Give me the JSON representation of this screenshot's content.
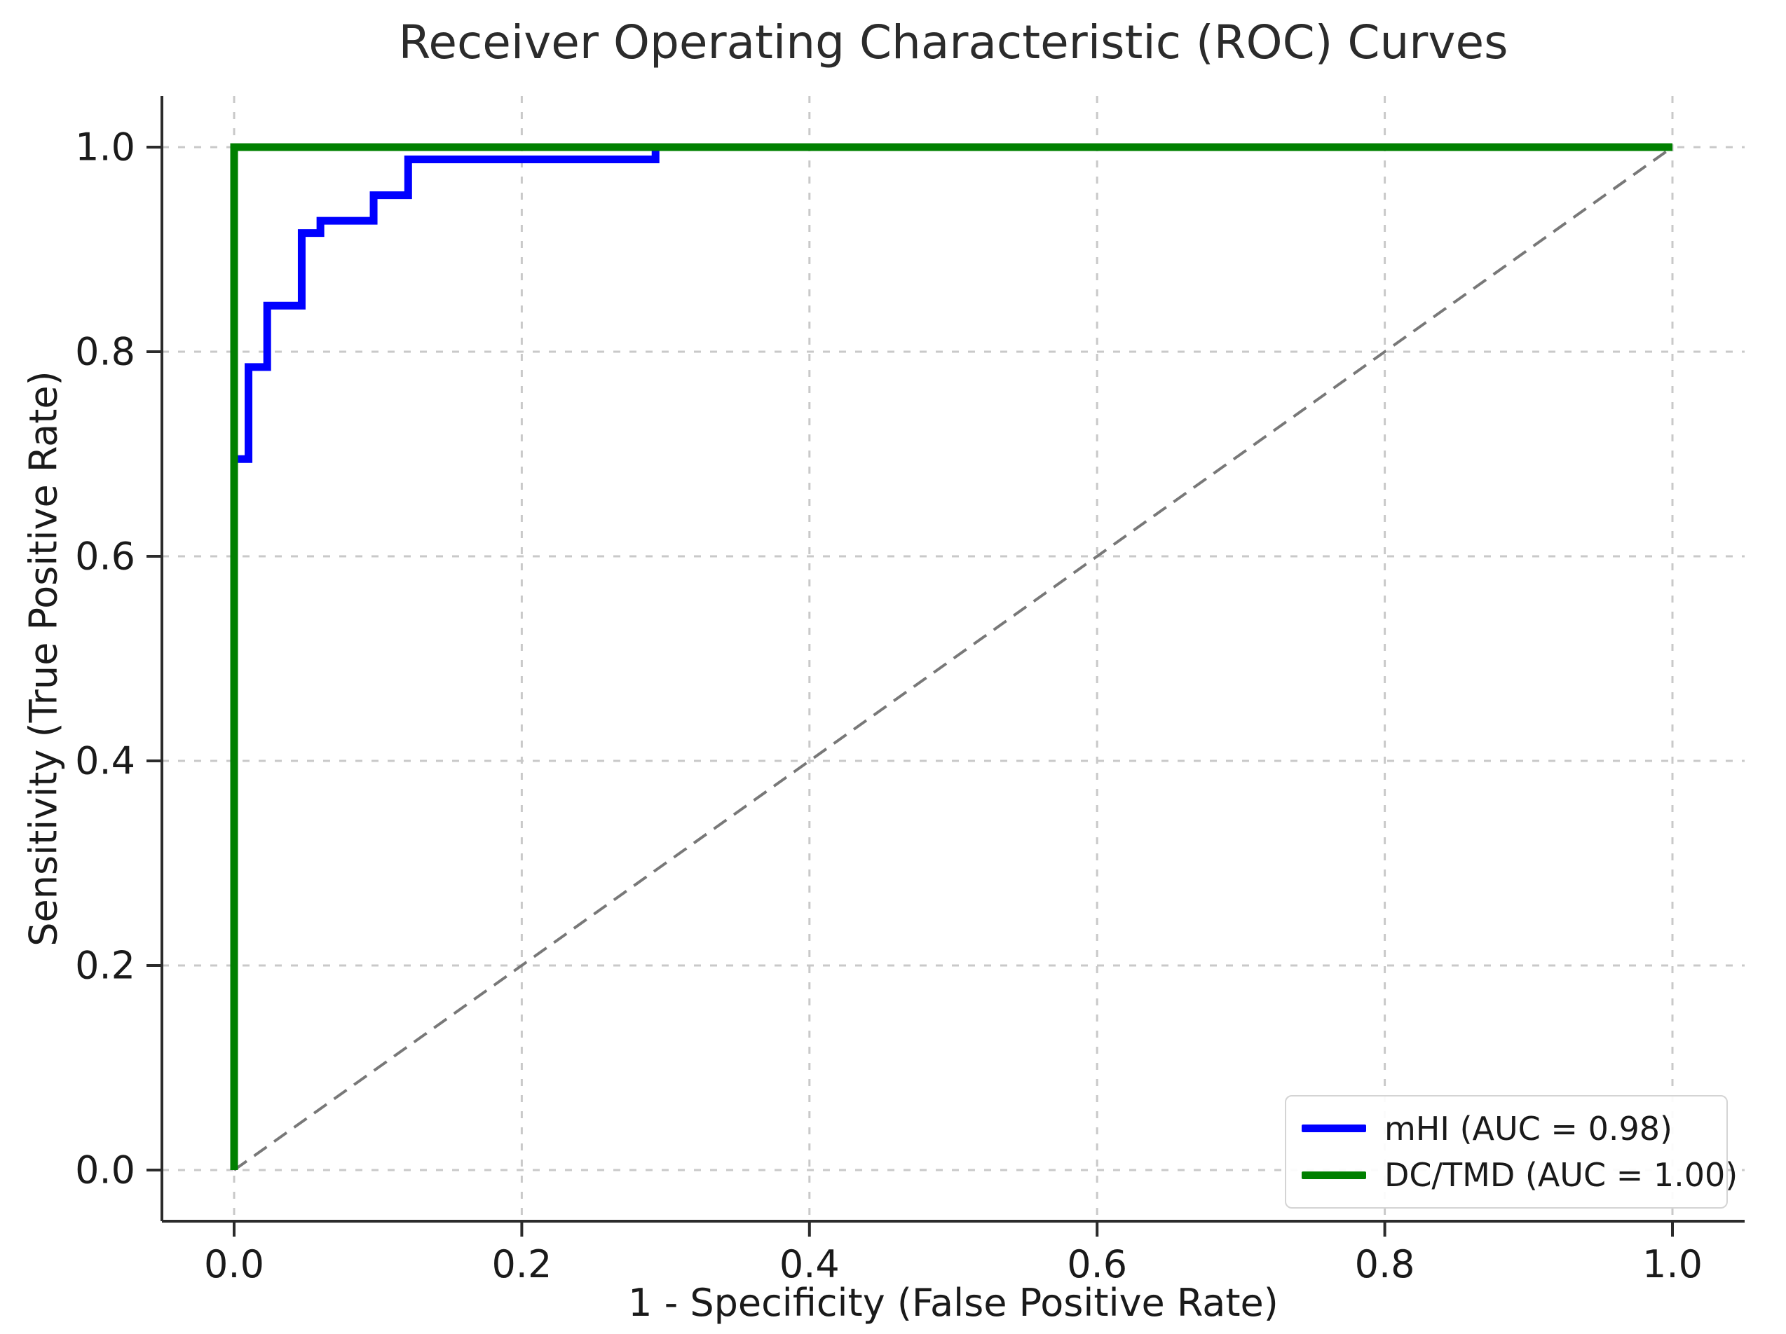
{
  "figure": {
    "background": "#ffffff",
    "text_color": "#1a1a1a",
    "axis_color": "#2b2b2b",
    "grid_color": "#c9c9c9"
  },
  "chart_data": {
    "type": "line",
    "title": "Receiver Operating Characteristic (ROC) Curves",
    "xlabel": "1 - Specificity (False Positive Rate)",
    "ylabel": "Sensitivity (True Positive Rate)",
    "xlim": [
      -0.05,
      1.05
    ],
    "ylim": [
      -0.05,
      1.05
    ],
    "xticks": [
      "0.0",
      "0.2",
      "0.4",
      "0.6",
      "0.8",
      "1.0"
    ],
    "yticks": [
      "0.0",
      "0.2",
      "0.4",
      "0.6",
      "0.8",
      "1.0"
    ],
    "grid": true,
    "grid_style": "dashed",
    "legend_position": "lower right",
    "series": [
      {
        "name": "chance-diagonal",
        "color": "#787878",
        "style": "dashed",
        "line_width": 4,
        "in_legend": false,
        "points": [
          [
            0,
            0
          ],
          [
            1,
            1
          ]
        ]
      },
      {
        "name": "mHI (AUC = 0.98)",
        "auc": 0.98,
        "color": "#0000ff",
        "style": "solid",
        "line_width": 11,
        "points": [
          [
            0,
            0
          ],
          [
            0,
            0.695
          ],
          [
            0.01,
            0.695
          ],
          [
            0.01,
            0.785
          ],
          [
            0.023,
            0.785
          ],
          [
            0.023,
            0.845
          ],
          [
            0.047,
            0.845
          ],
          [
            0.047,
            0.916
          ],
          [
            0.06,
            0.916
          ],
          [
            0.06,
            0.928
          ],
          [
            0.097,
            0.928
          ],
          [
            0.097,
            0.953
          ],
          [
            0.121,
            0.953
          ],
          [
            0.121,
            0.988
          ],
          [
            0.293,
            0.988
          ],
          [
            0.293,
            1.0
          ],
          [
            1.0,
            1.0
          ]
        ]
      },
      {
        "name": "DC/TMD (AUC = 1.00)",
        "auc": 1.0,
        "color": "#008000",
        "style": "solid",
        "line_width": 11,
        "points": [
          [
            0,
            0
          ],
          [
            0,
            1
          ],
          [
            1,
            1
          ]
        ]
      }
    ]
  }
}
